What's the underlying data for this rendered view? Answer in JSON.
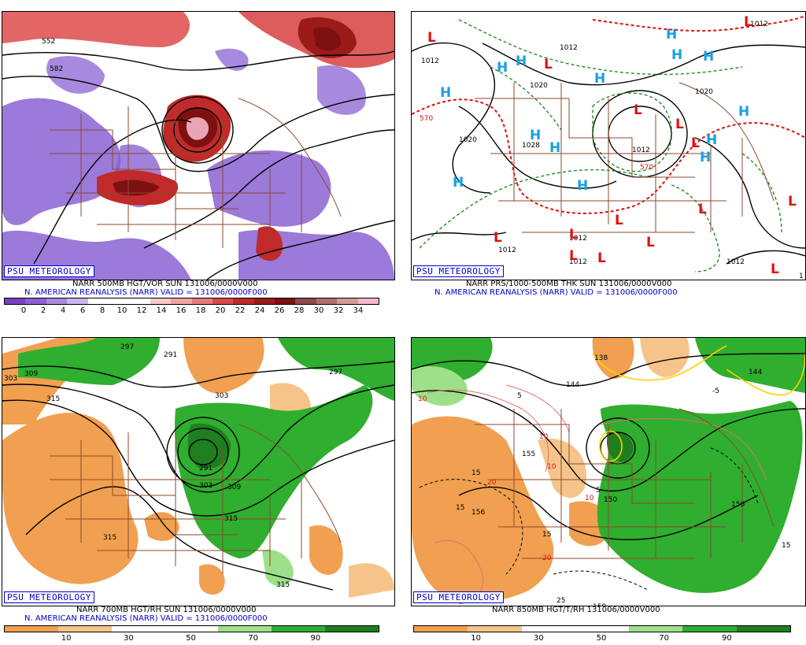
{
  "panels": {
    "p1": {
      "badge": "PSU METEOROLOGY",
      "title": "NARR 500MB HGT/VOR SUN 131006/0000V000",
      "valid": "N. AMERICAN REANALYSIS (NARR) VALID = 131006/0000F000",
      "colorbar": {
        "colors": [
          "#7b3fc4",
          "#8f5fd6",
          "#a889df",
          "#c9b6ea",
          "#ffffff",
          "#ffffff",
          "#ffffff",
          "#f7c9c9",
          "#f2a3a3",
          "#e97a7a",
          "#d94a4a",
          "#c02a2a",
          "#9b1a1a",
          "#7d1010",
          "#8d4b4b",
          "#b07070",
          "#d49a9a",
          "#f4b8c6"
        ],
        "labels": [
          "0",
          "2",
          "4",
          "6",
          "8",
          "10",
          "12",
          "14",
          "16",
          "18",
          "20",
          "22",
          "24",
          "26",
          "28",
          "30",
          "32",
          "34"
        ]
      },
      "contour_labels": [
        "552",
        "582"
      ]
    },
    "p2": {
      "badge": "PSU METEOROLOGY",
      "title": "NARR PRS/1000-500MB THK SUN 131006/0000V000",
      "valid": "N. AMERICAN REANALYSIS (NARR) VALID = 131006/0000F000",
      "contour_labels": [
        "1012",
        "1012",
        "1020",
        "1020",
        "1028",
        "1012",
        "1020",
        "1012",
        "1012",
        "1012",
        "1012",
        "570",
        "570",
        "1012",
        "1"
      ],
      "high_symbol": "H",
      "low_symbol": "L"
    },
    "p3": {
      "badge": "PSU METEOROLOGY",
      "title": "NARR 700MB HGT/RH SUN 131006/0000V000",
      "valid": "N. AMERICAN REANALYSIS (NARR) VALID = 131006/0000F000",
      "colorbar": {
        "colors": [
          "#f0a050",
          "#f6c48a",
          "#ffffff",
          "#ffffff",
          "#9ee08a",
          "#2fae2f",
          "#1e7f1e"
        ],
        "labels": [
          "10",
          "30",
          "50",
          "70",
          "90"
        ]
      },
      "contour_labels": [
        "297",
        "291",
        "303",
        "309",
        "315",
        "303",
        "297",
        "291",
        "303",
        "309",
        "315",
        "315",
        "315"
      ]
    },
    "p4": {
      "badge": "PSU METEOROLOGY",
      "title": "NARR 850MB HGT/T/RH 131006/0000V000",
      "colorbar": {
        "colors": [
          "#f0a050",
          "#f6c48a",
          "#ffffff",
          "#ffffff",
          "#9ee08a",
          "#2fae2f",
          "#1e7f1e"
        ],
        "labels": [
          "10",
          "30",
          "50",
          "70",
          "90"
        ]
      },
      "contour_labels": [
        "138",
        "144",
        "144",
        "150",
        "156",
        "156",
        "150",
        "155",
        "5",
        "-5",
        "10",
        "15",
        "10",
        "10",
        "20",
        "15",
        "15",
        "25",
        "15",
        "5",
        "20",
        "10"
      ]
    }
  },
  "colors": {
    "state_lines": "#8b4a2b",
    "contour": "#000000",
    "psu_blue": "#0000cc",
    "high": "#1aa0e0",
    "low": "#e01010",
    "thickness_red": "#e01010",
    "thickness_green": "#228b22"
  }
}
